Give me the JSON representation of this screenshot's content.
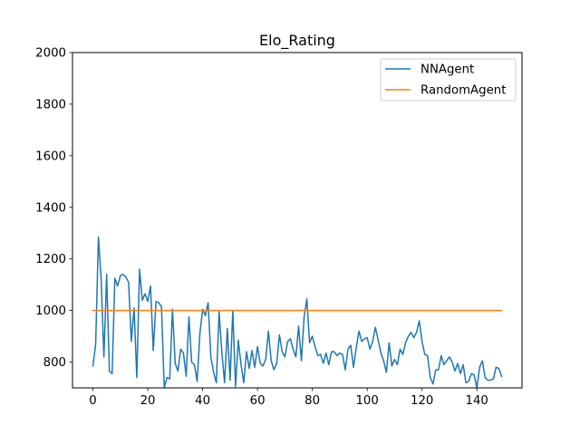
{
  "chart_data": {
    "type": "line",
    "title": "Elo_Rating",
    "xlabel": "",
    "ylabel": "",
    "xlim": [
      -7.45,
      156.45
    ],
    "ylim": [
      700,
      2000
    ],
    "xticks": [
      0,
      20,
      40,
      60,
      80,
      100,
      120,
      140
    ],
    "yticks": [
      800,
      1000,
      1200,
      1400,
      1600,
      1800,
      2000
    ],
    "grid": false,
    "legend_position": "top-right",
    "series": [
      {
        "name": "NNAgent",
        "color": "#1f77b4",
        "x": [
          0,
          1,
          2,
          3,
          4,
          5,
          6,
          7,
          8,
          9,
          10,
          11,
          12,
          13,
          14,
          15,
          16,
          17,
          18,
          19,
          20,
          21,
          22,
          23,
          24,
          25,
          26,
          27,
          28,
          29,
          30,
          31,
          32,
          33,
          34,
          35,
          36,
          37,
          38,
          39,
          40,
          41,
          42,
          43,
          44,
          45,
          46,
          47,
          48,
          49,
          50,
          51,
          52,
          53,
          54,
          55,
          56,
          57,
          58,
          59,
          60,
          61,
          62,
          63,
          64,
          65,
          66,
          67,
          68,
          69,
          70,
          71,
          72,
          73,
          74,
          75,
          76,
          77,
          78,
          79,
          80,
          81,
          82,
          83,
          84,
          85,
          86,
          87,
          88,
          89,
          90,
          91,
          92,
          93,
          94,
          95,
          96,
          97,
          98,
          99,
          100,
          101,
          102,
          103,
          104,
          105,
          106,
          107,
          108,
          109,
          110,
          111,
          112,
          113,
          114,
          115,
          116,
          117,
          118,
          119,
          120,
          121,
          122,
          123,
          124,
          125,
          126,
          127,
          128,
          129,
          130,
          131,
          132,
          133,
          134,
          135,
          136,
          137,
          138,
          139,
          140,
          141,
          142,
          143,
          144,
          145,
          146,
          147,
          148,
          149
        ],
        "y": [
          785,
          870,
          1285,
          1120,
          820,
          1140,
          765,
          755,
          1125,
          1095,
          1135,
          1140,
          1130,
          1110,
          880,
          1010,
          740,
          1160,
          1040,
          1065,
          1035,
          1095,
          845,
          1035,
          1030,
          1015,
          700,
          740,
          735,
          1005,
          795,
          765,
          850,
          835,
          745,
          975,
          800,
          790,
          725,
          910,
          1005,
          980,
          1030,
          820,
          760,
          720,
          995,
          840,
          720,
          930,
          730,
          1000,
          705,
          885,
          790,
          720,
          840,
          775,
          845,
          780,
          860,
          795,
          785,
          810,
          920,
          805,
          770,
          795,
          905,
          840,
          820,
          880,
          890,
          850,
          820,
          940,
          805,
          975,
          1045,
          875,
          900,
          860,
          825,
          830,
          795,
          835,
          790,
          840,
          840,
          825,
          835,
          830,
          770,
          850,
          865,
          780,
          855,
          920,
          880,
          890,
          895,
          850,
          880,
          935,
          885,
          835,
          805,
          760,
          875,
          785,
          810,
          790,
          850,
          830,
          875,
          900,
          915,
          895,
          915,
          960,
          880,
          830,
          825,
          740,
          715,
          770,
          770,
          825,
          790,
          805,
          820,
          800,
          765,
          795,
          755,
          790,
          720,
          725,
          755,
          750,
          700,
          780,
          805,
          740,
          730,
          730,
          735,
          780,
          775,
          745
        ]
      },
      {
        "name": "RandomAgent",
        "color": "#ff7f0e",
        "x": [
          0,
          149
        ],
        "y": [
          1000,
          1000
        ]
      }
    ]
  }
}
